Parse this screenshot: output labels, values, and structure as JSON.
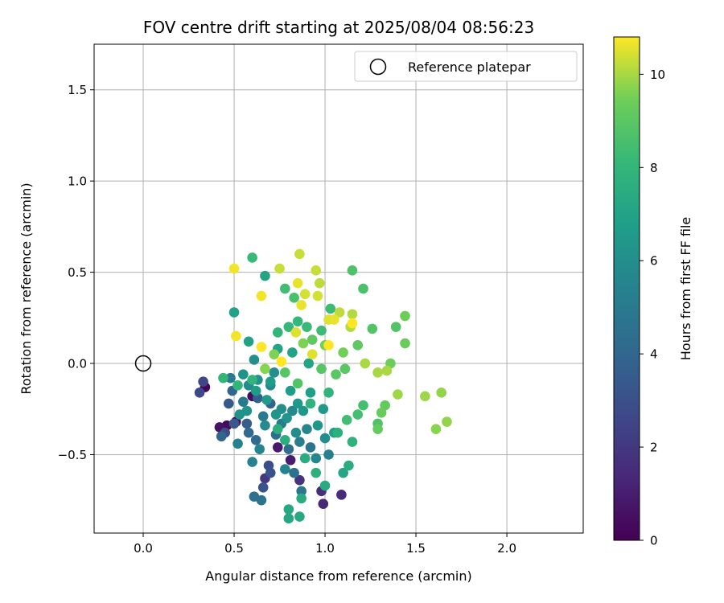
{
  "chart_data": {
    "type": "scatter",
    "title": "FOV centre drift starting at 2025/08/04 08:56:23",
    "xlabel": "Angular distance from reference (arcmin)",
    "ylabel": "Rotation from reference (arcmin)",
    "xlim": [
      -0.27,
      2.42
    ],
    "ylim": [
      -0.93,
      1.75
    ],
    "xticks": [
      0.0,
      0.5,
      1.0,
      1.5,
      2.0
    ],
    "xtick_labels": [
      "0.0",
      "0.5",
      "1.0",
      "1.5",
      "2.0"
    ],
    "yticks": [
      -0.5,
      0.0,
      0.5,
      1.0,
      1.5
    ],
    "ytick_labels": [
      "−0.5",
      "0.0",
      "0.5",
      "1.0",
      "1.5"
    ],
    "grid": true,
    "legend": {
      "placement": "top-right",
      "entries": [
        "Reference platepar"
      ]
    },
    "reference_point": {
      "name": "Reference platepar",
      "x": 0.0,
      "y": 0.0
    },
    "colorbar": {
      "label": "Hours from first FF file",
      "colormap": "viridis",
      "range": [
        0,
        10.8
      ],
      "ticks": [
        0,
        2,
        4,
        6,
        8,
        10
      ],
      "tick_labels": [
        "0",
        "2",
        "4",
        "6",
        "8",
        "10"
      ]
    },
    "series": [
      {
        "points": [
          {
            "x": 0.34,
            "y": -0.13,
            "t": 0.2
          },
          {
            "x": 0.46,
            "y": -0.34,
            "t": 0.3
          },
          {
            "x": 0.51,
            "y": -0.32,
            "t": 0.4
          },
          {
            "x": 0.6,
            "y": -0.18,
            "t": 0.5
          },
          {
            "x": 0.42,
            "y": -0.35,
            "t": 0.6
          },
          {
            "x": 0.74,
            "y": -0.46,
            "t": 0.9
          },
          {
            "x": 0.81,
            "y": -0.53,
            "t": 1.0
          },
          {
            "x": 0.99,
            "y": -0.77,
            "t": 1.3
          },
          {
            "x": 1.09,
            "y": -0.72,
            "t": 1.5
          },
          {
            "x": 0.98,
            "y": -0.7,
            "t": 1.6
          },
          {
            "x": 0.86,
            "y": -0.64,
            "t": 1.8
          },
          {
            "x": 0.67,
            "y": -0.63,
            "t": 2.0
          },
          {
            "x": 0.33,
            "y": -0.1,
            "t": 2.6
          },
          {
            "x": 0.31,
            "y": -0.16,
            "t": 2.7
          },
          {
            "x": 0.45,
            "y": -0.38,
            "t": 2.8
          },
          {
            "x": 0.69,
            "y": -0.56,
            "t": 2.9
          },
          {
            "x": 0.7,
            "y": -0.6,
            "t": 3.1
          },
          {
            "x": 0.66,
            "y": -0.68,
            "t": 3.2
          },
          {
            "x": 0.47,
            "y": -0.22,
            "t": 3.3
          },
          {
            "x": 0.5,
            "y": -0.33,
            "t": 3.4
          },
          {
            "x": 0.57,
            "y": -0.33,
            "t": 3.6
          },
          {
            "x": 0.63,
            "y": -0.19,
            "t": 3.7
          },
          {
            "x": 0.7,
            "y": -0.22,
            "t": 3.8
          },
          {
            "x": 0.43,
            "y": -0.4,
            "t": 3.9
          },
          {
            "x": 0.49,
            "y": -0.15,
            "t": 4.0
          },
          {
            "x": 0.58,
            "y": -0.38,
            "t": 4.1
          },
          {
            "x": 0.62,
            "y": -0.42,
            "t": 4.2
          },
          {
            "x": 0.73,
            "y": -0.39,
            "t": 4.3
          },
          {
            "x": 0.8,
            "y": -0.47,
            "t": 4.4
          },
          {
            "x": 0.83,
            "y": -0.6,
            "t": 4.5
          },
          {
            "x": 0.61,
            "y": -0.73,
            "t": 4.5
          },
          {
            "x": 0.65,
            "y": -0.75,
            "t": 4.6
          },
          {
            "x": 0.92,
            "y": -0.46,
            "t": 4.7
          },
          {
            "x": 0.87,
            "y": -0.7,
            "t": 4.8
          },
          {
            "x": 0.55,
            "y": -0.21,
            "t": 4.9
          },
          {
            "x": 0.48,
            "y": -0.08,
            "t": 5.0
          },
          {
            "x": 0.66,
            "y": -0.29,
            "t": 5.0
          },
          {
            "x": 0.76,
            "y": -0.33,
            "t": 5.1
          },
          {
            "x": 0.86,
            "y": -0.43,
            "t": 5.2
          },
          {
            "x": 1.02,
            "y": -0.5,
            "t": 5.3
          },
          {
            "x": 0.52,
            "y": -0.44,
            "t": 5.3
          },
          {
            "x": 0.6,
            "y": -0.54,
            "t": 5.4
          },
          {
            "x": 0.64,
            "y": -0.47,
            "t": 5.5
          },
          {
            "x": 0.78,
            "y": -0.58,
            "t": 5.5
          },
          {
            "x": 0.9,
            "y": -0.36,
            "t": 5.6
          },
          {
            "x": 0.95,
            "y": -0.52,
            "t": 5.6
          },
          {
            "x": 0.82,
            "y": -0.26,
            "t": 5.7
          },
          {
            "x": 0.7,
            "y": -0.12,
            "t": 5.7
          },
          {
            "x": 0.58,
            "y": -0.12,
            "t": 5.8
          },
          {
            "x": 0.67,
            "y": -0.34,
            "t": 5.8
          },
          {
            "x": 1.0,
            "y": -0.41,
            "t": 5.9
          },
          {
            "x": 0.84,
            "y": -0.38,
            "t": 5.9
          },
          {
            "x": 0.76,
            "y": -0.25,
            "t": 6.0
          },
          {
            "x": 0.72,
            "y": -0.05,
            "t": 6.0
          },
          {
            "x": 0.61,
            "y": 0.02,
            "t": 6.0
          },
          {
            "x": 0.55,
            "y": -0.06,
            "t": 6.1
          },
          {
            "x": 0.63,
            "y": -0.09,
            "t": 6.1
          },
          {
            "x": 0.53,
            "y": -0.28,
            "t": 6.2
          },
          {
            "x": 0.57,
            "y": -0.26,
            "t": 6.2
          },
          {
            "x": 0.73,
            "y": -0.28,
            "t": 6.3
          },
          {
            "x": 0.79,
            "y": -0.3,
            "t": 6.3
          },
          {
            "x": 0.88,
            "y": -0.26,
            "t": 6.4
          },
          {
            "x": 0.96,
            "y": -0.34,
            "t": 6.4
          },
          {
            "x": 0.99,
            "y": -0.25,
            "t": 6.5
          },
          {
            "x": 0.85,
            "y": -0.22,
            "t": 6.5
          },
          {
            "x": 0.68,
            "y": -0.2,
            "t": 6.6
          },
          {
            "x": 0.62,
            "y": -0.15,
            "t": 6.6
          },
          {
            "x": 0.7,
            "y": -0.1,
            "t": 6.7
          },
          {
            "x": 0.81,
            "y": -0.15,
            "t": 6.7
          },
          {
            "x": 0.92,
            "y": -0.16,
            "t": 6.8
          },
          {
            "x": 1.05,
            "y": -0.38,
            "t": 6.8
          },
          {
            "x": 0.58,
            "y": 0.12,
            "t": 6.9
          },
          {
            "x": 0.5,
            "y": 0.28,
            "t": 6.9
          },
          {
            "x": 0.74,
            "y": 0.08,
            "t": 7.0
          },
          {
            "x": 0.82,
            "y": 0.06,
            "t": 7.0
          },
          {
            "x": 0.67,
            "y": 0.48,
            "t": 7.1
          },
          {
            "x": 0.91,
            "y": 0.0,
            "t": 7.1
          },
          {
            "x": 1.1,
            "y": -0.6,
            "t": 7.2
          },
          {
            "x": 0.8,
            "y": -0.85,
            "t": 7.2
          },
          {
            "x": 0.86,
            "y": -0.84,
            "t": 7.3
          },
          {
            "x": 0.8,
            "y": -0.8,
            "t": 7.3
          },
          {
            "x": 0.87,
            "y": -0.74,
            "t": 7.4
          },
          {
            "x": 1.0,
            "y": -0.67,
            "t": 7.4
          },
          {
            "x": 1.13,
            "y": -0.56,
            "t": 7.5
          },
          {
            "x": 0.89,
            "y": -0.52,
            "t": 7.5
          },
          {
            "x": 0.74,
            "y": -0.36,
            "t": 7.6
          },
          {
            "x": 0.78,
            "y": -0.42,
            "t": 7.6
          },
          {
            "x": 0.95,
            "y": -0.6,
            "t": 7.7
          },
          {
            "x": 1.07,
            "y": -0.38,
            "t": 7.7
          },
          {
            "x": 1.15,
            "y": -0.43,
            "t": 7.8
          },
          {
            "x": 0.92,
            "y": -0.22,
            "t": 7.8
          },
          {
            "x": 1.02,
            "y": -0.16,
            "t": 7.9
          },
          {
            "x": 0.6,
            "y": -0.09,
            "t": 7.9
          },
          {
            "x": 0.52,
            "y": -0.12,
            "t": 8.0
          },
          {
            "x": 0.44,
            "y": -0.08,
            "t": 8.0
          },
          {
            "x": 0.74,
            "y": 0.17,
            "t": 8.0
          },
          {
            "x": 0.85,
            "y": 0.23,
            "t": 8.1
          },
          {
            "x": 0.8,
            "y": 0.2,
            "t": 8.1
          },
          {
            "x": 0.6,
            "y": 0.58,
            "t": 8.2
          },
          {
            "x": 0.9,
            "y": 0.2,
            "t": 8.2
          },
          {
            "x": 0.98,
            "y": 0.18,
            "t": 8.3
          },
          {
            "x": 1.03,
            "y": 0.3,
            "t": 8.3
          },
          {
            "x": 0.78,
            "y": 0.41,
            "t": 8.4
          },
          {
            "x": 1.12,
            "y": -0.31,
            "t": 8.4
          },
          {
            "x": 1.21,
            "y": -0.23,
            "t": 8.5
          },
          {
            "x": 1.18,
            "y": -0.28,
            "t": 8.5
          },
          {
            "x": 0.83,
            "y": 0.36,
            "t": 8.6
          },
          {
            "x": 1.21,
            "y": 0.41,
            "t": 8.6
          },
          {
            "x": 1.15,
            "y": 0.51,
            "t": 8.7
          },
          {
            "x": 1.29,
            "y": -0.33,
            "t": 8.7
          },
          {
            "x": 1.26,
            "y": 0.19,
            "t": 8.8
          },
          {
            "x": 1.39,
            "y": 0.2,
            "t": 8.8
          },
          {
            "x": 0.85,
            "y": -0.11,
            "t": 8.8
          },
          {
            "x": 0.78,
            "y": -0.05,
            "t": 8.9
          },
          {
            "x": 0.98,
            "y": -0.03,
            "t": 8.9
          },
          {
            "x": 1.06,
            "y": -0.06,
            "t": 9.0
          },
          {
            "x": 1.11,
            "y": -0.03,
            "t": 9.0
          },
          {
            "x": 0.93,
            "y": 0.13,
            "t": 9.1
          },
          {
            "x": 1.18,
            "y": 0.1,
            "t": 9.1
          },
          {
            "x": 1.33,
            "y": -0.23,
            "t": 9.2
          },
          {
            "x": 1.29,
            "y": -0.36,
            "t": 9.2
          },
          {
            "x": 1.31,
            "y": -0.27,
            "t": 9.3
          },
          {
            "x": 1.44,
            "y": 0.11,
            "t": 9.3
          },
          {
            "x": 1.44,
            "y": 0.26,
            "t": 9.4
          },
          {
            "x": 1.36,
            "y": 0.0,
            "t": 9.4
          },
          {
            "x": 1.1,
            "y": 0.06,
            "t": 9.5
          },
          {
            "x": 1.0,
            "y": 0.1,
            "t": 9.5
          },
          {
            "x": 0.88,
            "y": 0.11,
            "t": 9.6
          },
          {
            "x": 0.72,
            "y": 0.05,
            "t": 9.6
          },
          {
            "x": 0.67,
            "y": -0.03,
            "t": 9.7
          },
          {
            "x": 1.61,
            "y": -0.36,
            "t": 9.7
          },
          {
            "x": 1.67,
            "y": -0.32,
            "t": 9.8
          },
          {
            "x": 1.64,
            "y": -0.16,
            "t": 9.8
          },
          {
            "x": 1.55,
            "y": -0.18,
            "t": 9.9
          },
          {
            "x": 1.4,
            "y": -0.17,
            "t": 9.9
          },
          {
            "x": 1.34,
            "y": -0.04,
            "t": 10.0
          },
          {
            "x": 1.29,
            "y": -0.05,
            "t": 10.0
          },
          {
            "x": 1.22,
            "y": 0.0,
            "t": 10.0
          },
          {
            "x": 1.14,
            "y": 0.2,
            "t": 10.1
          },
          {
            "x": 1.15,
            "y": 0.27,
            "t": 10.1
          },
          {
            "x": 1.08,
            "y": 0.28,
            "t": 10.2
          },
          {
            "x": 0.97,
            "y": 0.44,
            "t": 10.2
          },
          {
            "x": 0.86,
            "y": 0.6,
            "t": 10.3
          },
          {
            "x": 0.75,
            "y": 0.52,
            "t": 10.3
          },
          {
            "x": 0.95,
            "y": 0.51,
            "t": 10.3
          },
          {
            "x": 0.89,
            "y": 0.38,
            "t": 10.4
          },
          {
            "x": 0.96,
            "y": 0.37,
            "t": 10.4
          },
          {
            "x": 0.84,
            "y": 0.17,
            "t": 10.5
          },
          {
            "x": 0.93,
            "y": 0.05,
            "t": 10.5
          },
          {
            "x": 1.02,
            "y": 0.24,
            "t": 10.5
          },
          {
            "x": 1.05,
            "y": 0.24,
            "t": 10.6
          },
          {
            "x": 0.87,
            "y": 0.32,
            "t": 10.6
          },
          {
            "x": 0.85,
            "y": 0.44,
            "t": 10.6
          },
          {
            "x": 0.65,
            "y": 0.37,
            "t": 10.7
          },
          {
            "x": 0.5,
            "y": 0.52,
            "t": 10.7
          },
          {
            "x": 0.51,
            "y": 0.15,
            "t": 10.7
          },
          {
            "x": 0.65,
            "y": 0.09,
            "t": 10.8
          },
          {
            "x": 0.76,
            "y": 0.01,
            "t": 10.8
          },
          {
            "x": 1.02,
            "y": 0.1,
            "t": 10.8
          },
          {
            "x": 1.15,
            "y": 0.22,
            "t": 10.8
          }
        ]
      }
    ]
  }
}
